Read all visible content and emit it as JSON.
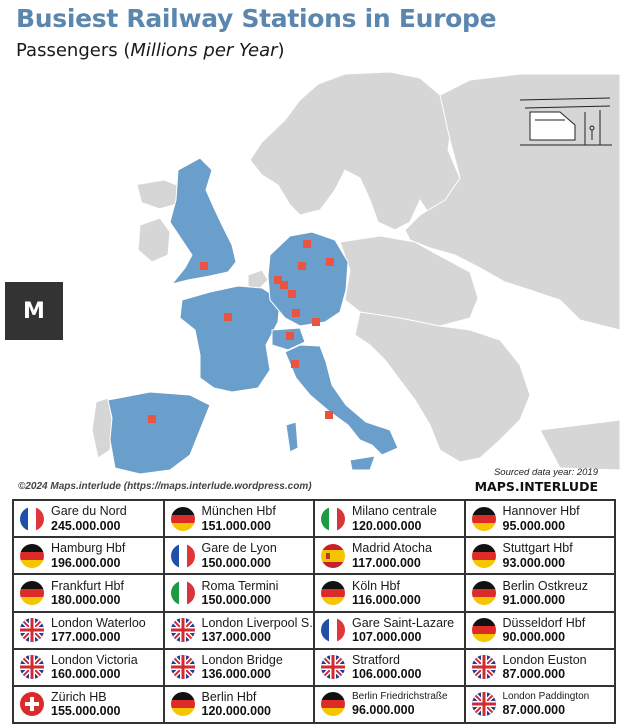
{
  "header": {
    "title": "Busiest Railway Stations in Europe",
    "subtitle_main": "Passengers (",
    "subtitle_italic": "Millions per Year",
    "subtitle_end": ")"
  },
  "logo_letter": "M",
  "footer": {
    "copyright": "©2024 Maps.interlude (https://maps.interlude.wordpress.com)",
    "sourced": "Sourced data year: 2019",
    "brand": "MAPS.INTERLUDE"
  },
  "colors": {
    "title": "#5b86ad",
    "highlight_country": "#6a9fcc",
    "other_country": "#d6d6d6",
    "sea": "#ffffff",
    "station_marker": "#e8543e"
  },
  "stations": [
    {
      "name": "Gare du Nord",
      "value": "245.000.000",
      "flag": "fr"
    },
    {
      "name": "München Hbf",
      "value": "151.000.000",
      "flag": "de"
    },
    {
      "name": "Milano centrale",
      "value": "120.000.000",
      "flag": "it"
    },
    {
      "name": "Hannover Hbf",
      "value": "95.000.000",
      "flag": "de"
    },
    {
      "name": "Hamburg Hbf",
      "value": "196.000.000",
      "flag": "de"
    },
    {
      "name": "Gare de Lyon",
      "value": "150.000.000",
      "flag": "fr"
    },
    {
      "name": "Madrid Atocha",
      "value": "117.000.000",
      "flag": "es"
    },
    {
      "name": "Stuttgart Hbf",
      "value": "93.000.000",
      "flag": "de"
    },
    {
      "name": "Frankfurt Hbf",
      "value": "180.000.000",
      "flag": "de"
    },
    {
      "name": "Roma Termini",
      "value": "150.000.000",
      "flag": "it"
    },
    {
      "name": "Köln Hbf",
      "value": "116.000.000",
      "flag": "de"
    },
    {
      "name": "Berlin Ostkreuz",
      "value": "91.000.000",
      "flag": "de"
    },
    {
      "name": "London Waterloo",
      "value": "177.000.000",
      "flag": "uk"
    },
    {
      "name": "London Liverpool S.",
      "value": "137.000.000",
      "flag": "uk"
    },
    {
      "name": "Gare Saint-Lazare",
      "value": "107.000.000",
      "flag": "fr"
    },
    {
      "name": "Düsseldorf Hbf",
      "value": "90.000.000",
      "flag": "de"
    },
    {
      "name": "London Victoria",
      "value": "160.000.000",
      "flag": "uk"
    },
    {
      "name": "London Bridge",
      "value": "136.000.000",
      "flag": "uk"
    },
    {
      "name": "Stratford",
      "value": "106.000.000",
      "flag": "uk"
    },
    {
      "name": "London Euston",
      "value": "87.000.000",
      "flag": "uk"
    },
    {
      "name": "Zürich HB",
      "value": "155.000.000",
      "flag": "ch"
    },
    {
      "name": "Berlin Hbf",
      "value": "120.000.000",
      "flag": "de"
    },
    {
      "name": "Berlin Friedrichstraße",
      "value": "96.000.000",
      "flag": "de",
      "small": true
    },
    {
      "name": "London Paddington",
      "value": "87.000.000",
      "flag": "uk",
      "small": true
    }
  ]
}
